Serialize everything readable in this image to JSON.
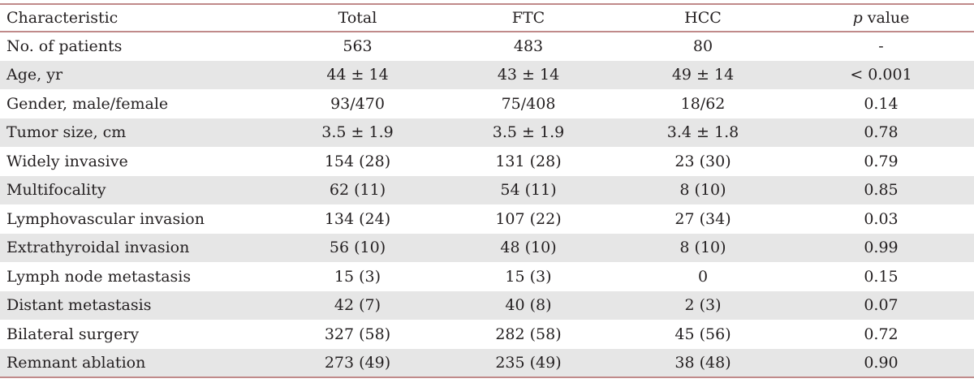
{
  "table": {
    "headers": {
      "characteristic": "Characteristic",
      "total": "Total",
      "ftc": "FTC",
      "hcc": "HCC",
      "p_italic": "p",
      "p_rest": " value"
    },
    "rows": [
      {
        "characteristic": "No. of patients",
        "total": "563",
        "ftc": "483",
        "hcc": "80",
        "p": "-"
      },
      {
        "characteristic": "Age, yr",
        "total": "44 ± 14",
        "ftc": "43 ± 14",
        "hcc": "49 ± 14",
        "p": "< 0.001"
      },
      {
        "characteristic": "Gender, male/female",
        "total": "93/470",
        "ftc": "75/408",
        "hcc": "18/62",
        "p": "0.14"
      },
      {
        "characteristic": "Tumor size, cm",
        "total": "3.5 ± 1.9",
        "ftc": "3.5 ± 1.9",
        "hcc": "3.4 ± 1.8",
        "p": "0.78"
      },
      {
        "characteristic": "Widely invasive",
        "total": "154 (28)",
        "ftc": "131 (28)",
        "hcc": "23 (30)",
        "p": "0.79"
      },
      {
        "characteristic": "Multifocality",
        "total": "62 (11)",
        "ftc": "54 (11)",
        "hcc": "8 (10)",
        "p": "0.85"
      },
      {
        "characteristic": "Lymphovascular invasion",
        "total": "134 (24)",
        "ftc": "107 (22)",
        "hcc": "27 (34)",
        "p": "0.03"
      },
      {
        "characteristic": "Extrathyroidal invasion",
        "total": "56 (10)",
        "ftc": "48 (10)",
        "hcc": "8 (10)",
        "p": "0.99"
      },
      {
        "characteristic": "Lymph node metastasis",
        "total": "15 (3)",
        "ftc": "15 (3)",
        "hcc": "0",
        "p": "0.15"
      },
      {
        "characteristic": "Distant metastasis",
        "total": "42 (7)",
        "ftc": "40 (8)",
        "hcc": "2 (3)",
        "p": "0.07"
      },
      {
        "characteristic": "Bilateral surgery",
        "total": "327 (58)",
        "ftc": "282 (58)",
        "hcc": "45 (56)",
        "p": "0.72"
      },
      {
        "characteristic": "Remnant ablation",
        "total": "273 (49)",
        "ftc": "235 (49)",
        "hcc": "38 (48)",
        "p": "0.90"
      }
    ]
  }
}
